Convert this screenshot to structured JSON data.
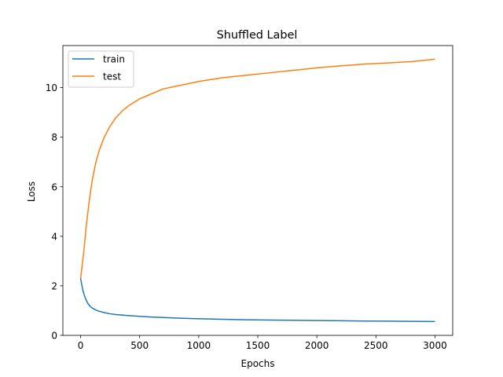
{
  "chart_data": {
    "type": "line",
    "title": "Shuffled Label",
    "xlabel": "Epochs",
    "ylabel": "Loss",
    "xlim": [
      -150,
      3150
    ],
    "ylim": [
      0,
      11.7
    ],
    "xticks": [
      0,
      500,
      1000,
      1500,
      2000,
      2500,
      3000
    ],
    "yticks": [
      0,
      2,
      4,
      6,
      8,
      10
    ],
    "grid": false,
    "legend_position": "top-left",
    "series": [
      {
        "name": "train",
        "color": "#1f77b4",
        "x": [
          0,
          20,
          40,
          60,
          80,
          100,
          130,
          160,
          200,
          250,
          300,
          400,
          500,
          600,
          700,
          800,
          1000,
          1200,
          1400,
          1600,
          1800,
          2000,
          2200,
          2400,
          2600,
          2800,
          3000
        ],
        "y": [
          2.3,
          1.8,
          1.5,
          1.3,
          1.18,
          1.1,
          1.02,
          0.97,
          0.92,
          0.87,
          0.84,
          0.8,
          0.77,
          0.74,
          0.72,
          0.7,
          0.67,
          0.65,
          0.63,
          0.62,
          0.61,
          0.6,
          0.59,
          0.58,
          0.575,
          0.565,
          0.56
        ]
      },
      {
        "name": "test",
        "color": "#ff7f0e",
        "x": [
          0,
          25,
          50,
          75,
          100,
          130,
          160,
          200,
          250,
          300,
          350,
          400,
          450,
          500,
          600,
          700,
          800,
          900,
          1000,
          1200,
          1400,
          1600,
          1800,
          2000,
          2200,
          2400,
          2600,
          2800,
          3000
        ],
        "y": [
          2.3,
          3.3,
          4.5,
          5.5,
          6.3,
          7.0,
          7.5,
          8.0,
          8.45,
          8.8,
          9.05,
          9.25,
          9.4,
          9.55,
          9.75,
          9.95,
          10.05,
          10.15,
          10.25,
          10.4,
          10.5,
          10.6,
          10.7,
          10.8,
          10.88,
          10.95,
          11.0,
          11.05,
          11.15
        ]
      }
    ]
  }
}
